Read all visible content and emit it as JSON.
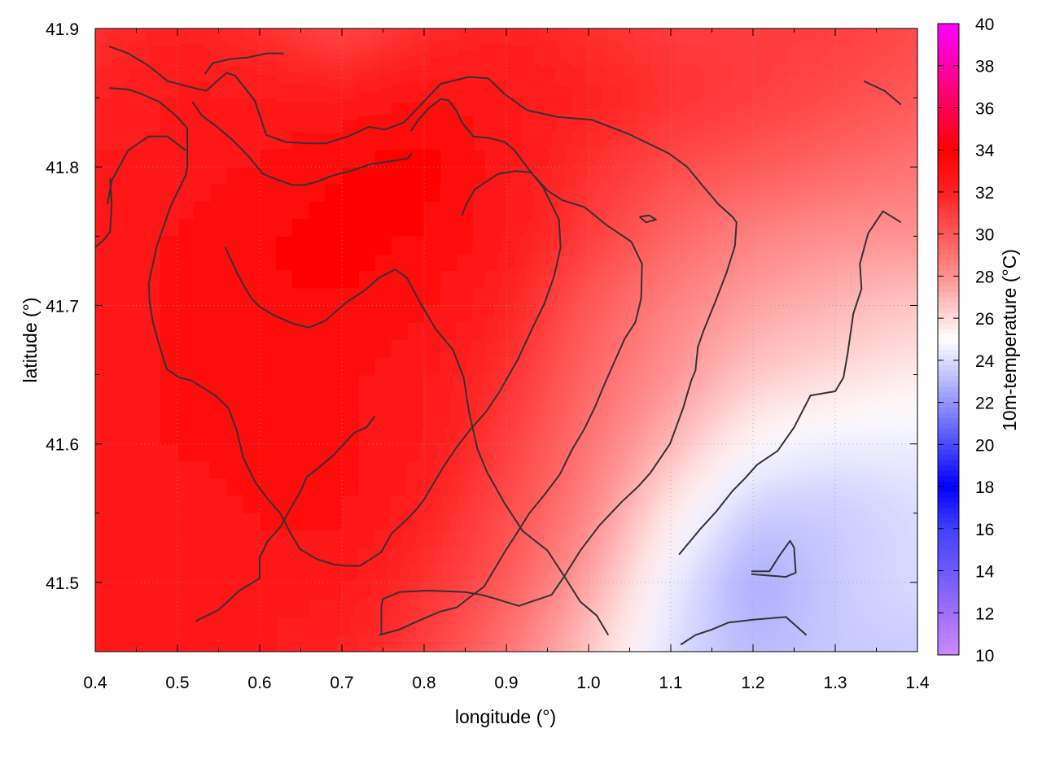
{
  "chart_data": {
    "type": "heatmap",
    "title": "",
    "xlabel": "longitude (°)",
    "ylabel": "latitude (°)",
    "colorbar_label": "10m-temperature (°C)",
    "xlim": [
      0.4,
      1.4
    ],
    "ylim": [
      41.45,
      41.9
    ],
    "x_ticks": [
      0.4,
      0.5,
      0.6,
      0.7,
      0.8,
      0.9,
      1.0,
      1.1,
      1.2,
      1.3,
      1.4
    ],
    "x_tick_labels": [
      "0.4",
      "0.5",
      "0.6",
      "0.7",
      "0.8",
      "0.9",
      "1.0",
      "1.1",
      "1.2",
      "1.3",
      "1.4"
    ],
    "y_ticks": [
      41.5,
      41.6,
      41.7,
      41.8,
      41.9
    ],
    "y_tick_labels": [
      "41.5",
      "41.6",
      "41.7",
      "41.8",
      "41.9"
    ],
    "colorbar_range": [
      10,
      40
    ],
    "colorbar_ticks": [
      10,
      12,
      14,
      16,
      18,
      20,
      22,
      24,
      26,
      28,
      30,
      32,
      34,
      36,
      38,
      40
    ],
    "colorbar_tick_labels": [
      "10",
      "12",
      "14",
      "16",
      "18",
      "20",
      "22",
      "24",
      "26",
      "28",
      "30",
      "32",
      "34",
      "36",
      "38",
      "40"
    ],
    "colormap": [
      {
        "value": 10,
        "color": "#cc88ff"
      },
      {
        "value": 16,
        "color": "#4040ff"
      },
      {
        "value": 18,
        "color": "#0000ff"
      },
      {
        "value": 21,
        "color": "#7070ff"
      },
      {
        "value": 25,
        "color": "#ffffff"
      },
      {
        "value": 28,
        "color": "#ff9090"
      },
      {
        "value": 32,
        "color": "#ff2020"
      },
      {
        "value": 34,
        "color": "#ff0000"
      },
      {
        "value": 37,
        "color": "#ff0080"
      },
      {
        "value": 40,
        "color": "#ff00ff"
      }
    ],
    "temperature_field": {
      "x": [
        0.4,
        0.5,
        0.6,
        0.7,
        0.8,
        0.9,
        1.0,
        1.1,
        1.2,
        1.3,
        1.4
      ],
      "y": [
        41.45,
        41.5,
        41.55,
        41.6,
        41.65,
        41.7,
        41.75,
        41.8,
        41.85,
        41.9
      ],
      "z": [
        [
          32.5,
          32.5,
          32.5,
          32.0,
          31.0,
          29.0,
          26.5,
          24.0,
          23.0,
          23.5,
          23.5
        ],
        [
          32.5,
          32.5,
          32.5,
          32.5,
          31.5,
          30.0,
          27.5,
          24.5,
          22.5,
          23.5,
          24.0
        ],
        [
          32.5,
          32.5,
          33.0,
          33.0,
          32.0,
          30.5,
          28.5,
          25.5,
          23.5,
          23.5,
          24.0
        ],
        [
          32.5,
          33.0,
          33.0,
          33.0,
          32.5,
          31.0,
          29.0,
          27.0,
          25.0,
          24.5,
          24.5
        ],
        [
          32.5,
          33.0,
          33.0,
          33.0,
          32.5,
          31.5,
          29.5,
          28.0,
          26.5,
          26.0,
          25.5
        ],
        [
          32.5,
          33.0,
          33.5,
          33.5,
          33.0,
          32.0,
          30.0,
          28.5,
          27.5,
          27.0,
          26.5
        ],
        [
          32.5,
          33.0,
          33.5,
          34.0,
          33.5,
          32.5,
          31.0,
          29.5,
          28.5,
          28.0,
          28.0
        ],
        [
          32.5,
          32.5,
          33.0,
          33.5,
          34.0,
          32.5,
          31.5,
          30.5,
          30.0,
          29.5,
          29.0
        ],
        [
          32.0,
          32.5,
          32.5,
          32.5,
          33.0,
          32.5,
          32.0,
          31.5,
          31.0,
          30.5,
          30.0
        ],
        [
          31.5,
          32.0,
          31.5,
          30.5,
          31.5,
          32.0,
          31.5,
          31.0,
          31.0,
          31.0,
          30.5
        ]
      ]
    },
    "contour_lines": [
      [
        [
          0.417,
          41.887
        ],
        [
          0.44,
          41.882
        ],
        [
          0.465,
          41.873
        ],
        [
          0.488,
          41.862
        ],
        [
          0.52,
          41.857
        ],
        [
          0.535,
          41.855
        ],
        [
          0.55,
          41.863
        ],
        [
          0.56,
          41.868
        ],
        [
          0.57,
          41.866
        ],
        [
          0.594,
          41.848
        ],
        [
          0.608,
          41.823
        ],
        [
          0.632,
          41.818
        ],
        [
          0.66,
          41.817
        ],
        [
          0.68,
          41.817
        ],
        [
          0.707,
          41.822
        ],
        [
          0.733,
          41.829
        ],
        [
          0.752,
          41.827
        ],
        [
          0.775,
          41.832
        ],
        [
          0.785,
          41.838
        ],
        [
          0.82,
          41.86
        ],
        [
          0.854,
          41.865
        ],
        [
          0.878,
          41.864
        ],
        [
          0.897,
          41.853
        ],
        [
          0.925,
          41.841
        ],
        [
          0.963,
          41.836
        ],
        [
          1.004,
          41.834
        ],
        [
          1.048,
          41.824
        ],
        [
          1.097,
          41.81
        ],
        [
          1.12,
          41.8
        ],
        [
          1.138,
          41.787
        ],
        [
          1.158,
          41.773
        ],
        [
          1.175,
          41.764
        ],
        [
          1.18,
          41.76
        ],
        [
          1.178,
          41.743
        ],
        [
          1.168,
          41.724
        ],
        [
          1.155,
          41.704
        ],
        [
          1.14,
          41.682
        ],
        [
          1.133,
          41.67
        ],
        [
          1.13,
          41.653
        ],
        [
          1.125,
          41.646
        ],
        [
          1.115,
          41.626
        ],
        [
          1.099,
          41.6
        ],
        [
          1.075,
          41.579
        ],
        [
          1.06,
          41.569
        ],
        [
          1.04,
          41.558
        ],
        [
          1.013,
          41.541
        ],
        [
          0.99,
          41.523
        ],
        [
          0.97,
          41.504
        ],
        [
          0.955,
          41.491
        ],
        [
          0.93,
          41.486
        ],
        [
          0.915,
          41.483
        ],
        [
          0.888,
          41.488
        ],
        [
          0.87,
          41.491
        ],
        [
          0.85,
          41.493
        ],
        [
          0.81,
          41.494
        ],
        [
          0.8,
          41.494
        ],
        [
          0.77,
          41.493
        ],
        [
          0.75,
          41.488
        ],
        [
          0.748,
          41.483
        ],
        [
          0.748,
          41.477
        ],
        [
          0.748,
          41.47
        ],
        [
          0.748,
          41.462
        ]
      ],
      [
        [
          0.417,
          41.857
        ],
        [
          0.44,
          41.856
        ],
        [
          0.455,
          41.853
        ],
        [
          0.478,
          41.847
        ],
        [
          0.498,
          41.837
        ],
        [
          0.512,
          41.828
        ],
        [
          0.512,
          41.8
        ],
        [
          0.51,
          41.794
        ],
        [
          0.492,
          41.772
        ],
        [
          0.475,
          41.743
        ],
        [
          0.465,
          41.716
        ],
        [
          0.466,
          41.703
        ],
        [
          0.47,
          41.688
        ],
        [
          0.478,
          41.671
        ],
        [
          0.487,
          41.654
        ],
        [
          0.502,
          41.648
        ],
        [
          0.516,
          41.646
        ],
        [
          0.546,
          41.635
        ],
        [
          0.562,
          41.626
        ],
        [
          0.572,
          41.61
        ],
        [
          0.58,
          41.59
        ],
        [
          0.595,
          41.572
        ],
        [
          0.61,
          41.56
        ],
        [
          0.625,
          41.55
        ],
        [
          0.637,
          41.536
        ],
        [
          0.649,
          41.524
        ],
        [
          0.669,
          41.517
        ],
        [
          0.69,
          41.513
        ],
        [
          0.705,
          41.512
        ],
        [
          0.722,
          41.512
        ],
        [
          0.738,
          41.518
        ],
        [
          0.748,
          41.522
        ],
        [
          0.76,
          41.535
        ],
        [
          0.78,
          41.546
        ],
        [
          0.791,
          41.553
        ],
        [
          0.8,
          41.56
        ],
        [
          0.81,
          41.57
        ],
        [
          0.823,
          41.583
        ],
        [
          0.84,
          41.598
        ],
        [
          0.857,
          41.611
        ],
        [
          0.875,
          41.623
        ],
        [
          0.892,
          41.638
        ],
        [
          0.914,
          41.661
        ],
        [
          0.932,
          41.684
        ],
        [
          0.946,
          41.701
        ],
        [
          0.958,
          41.721
        ],
        [
          0.966,
          41.742
        ],
        [
          0.964,
          41.762
        ],
        [
          0.945,
          41.785
        ],
        [
          0.925,
          41.8
        ],
        [
          0.91,
          41.812
        ],
        [
          0.898,
          41.818
        ],
        [
          0.878,
          41.821
        ],
        [
          0.86,
          41.822
        ],
        [
          0.846,
          41.832
        ],
        [
          0.84,
          41.84
        ],
        [
          0.83,
          41.848
        ],
        [
          0.82,
          41.849
        ],
        [
          0.805,
          41.842
        ],
        [
          0.793,
          41.834
        ],
        [
          0.784,
          41.826
        ]
      ],
      [
        [
          0.4,
          41.742
        ],
        [
          0.41,
          41.747
        ],
        [
          0.418,
          41.753
        ],
        [
          0.42,
          41.773
        ],
        [
          0.418,
          41.792
        ]
      ],
      [
        [
          0.415,
          41.773
        ],
        [
          0.42,
          41.79
        ],
        [
          0.44,
          41.812
        ],
        [
          0.465,
          41.822
        ],
        [
          0.488,
          41.822
        ],
        [
          0.51,
          41.812
        ]
      ],
      [
        [
          0.533,
          41.867
        ],
        [
          0.543,
          41.875
        ],
        [
          0.565,
          41.878
        ],
        [
          0.585,
          41.879
        ],
        [
          0.609,
          41.882
        ],
        [
          0.629,
          41.882
        ]
      ],
      [
        [
          0.518,
          41.847
        ],
        [
          0.53,
          41.837
        ],
        [
          0.548,
          41.829
        ],
        [
          0.566,
          41.82
        ],
        [
          0.586,
          41.808
        ],
        [
          0.604,
          41.795
        ],
        [
          0.62,
          41.791
        ],
        [
          0.64,
          41.787
        ],
        [
          0.655,
          41.787
        ],
        [
          0.668,
          41.789
        ],
        [
          0.69,
          41.794
        ],
        [
          0.71,
          41.797
        ],
        [
          0.735,
          41.802
        ],
        [
          0.758,
          41.804
        ],
        [
          0.78,
          41.806
        ],
        [
          0.785,
          41.81
        ]
      ],
      [
        [
          0.558,
          41.742
        ],
        [
          0.572,
          41.724
        ],
        [
          0.58,
          41.715
        ],
        [
          0.59,
          41.705
        ],
        [
          0.6,
          41.699
        ],
        [
          0.617,
          41.693
        ],
        [
          0.64,
          41.687
        ],
        [
          0.66,
          41.684
        ],
        [
          0.68,
          41.689
        ],
        [
          0.705,
          41.702
        ],
        [
          0.728,
          41.711
        ],
        [
          0.745,
          41.72
        ],
        [
          0.765,
          41.726
        ],
        [
          0.779,
          41.72
        ],
        [
          0.795,
          41.702
        ],
        [
          0.814,
          41.683
        ],
        [
          0.835,
          41.668
        ],
        [
          0.848,
          41.648
        ],
        [
          0.855,
          41.622
        ],
        [
          0.865,
          41.596
        ],
        [
          0.877,
          41.579
        ],
        [
          0.898,
          41.557
        ],
        [
          0.92,
          41.537
        ],
        [
          0.95,
          41.523
        ],
        [
          0.972,
          41.503
        ],
        [
          0.99,
          41.486
        ],
        [
          1.01,
          41.476
        ],
        [
          1.024,
          41.462
        ]
      ],
      [
        [
          0.522,
          41.472
        ],
        [
          0.55,
          41.48
        ],
        [
          0.575,
          41.494
        ],
        [
          0.6,
          41.503
        ],
        [
          0.6,
          41.518
        ],
        [
          0.61,
          41.53
        ],
        [
          0.625,
          41.54
        ],
        [
          0.637,
          41.553
        ],
        [
          0.65,
          41.566
        ],
        [
          0.657,
          41.576
        ],
        [
          0.67,
          41.582
        ],
        [
          0.69,
          41.592
        ],
        [
          0.715,
          41.608
        ],
        [
          0.73,
          41.612
        ],
        [
          0.74,
          41.62
        ]
      ],
      [
        [
          0.745,
          41.462
        ],
        [
          0.77,
          41.466
        ],
        [
          0.792,
          41.472
        ],
        [
          0.82,
          41.479
        ],
        [
          0.84,
          41.482
        ],
        [
          0.855,
          41.489
        ],
        [
          0.873,
          41.497
        ],
        [
          0.886,
          41.51
        ],
        [
          0.898,
          41.522
        ],
        [
          0.91,
          41.533
        ],
        [
          0.928,
          41.55
        ],
        [
          0.946,
          41.563
        ],
        [
          0.965,
          41.578
        ],
        [
          0.98,
          41.596
        ],
        [
          0.995,
          41.611
        ],
        [
          1.008,
          41.627
        ],
        [
          1.02,
          41.644
        ],
        [
          1.032,
          41.66
        ],
        [
          1.044,
          41.676
        ],
        [
          1.057,
          41.688
        ],
        [
          1.064,
          41.705
        ],
        [
          1.065,
          41.73
        ],
        [
          1.052,
          41.746
        ],
        [
          1.022,
          41.758
        ],
        [
          0.995,
          41.771
        ],
        [
          0.968,
          41.776
        ],
        [
          0.95,
          41.783
        ],
        [
          0.93,
          41.796
        ],
        [
          0.912,
          41.797
        ],
        [
          0.89,
          41.795
        ],
        [
          0.862,
          41.784
        ],
        [
          0.852,
          41.774
        ],
        [
          0.846,
          41.765
        ]
      ],
      [
        [
          1.062,
          41.764
        ],
        [
          1.07,
          41.76
        ],
        [
          1.082,
          41.762
        ],
        [
          1.074,
          41.765
        ],
        [
          1.062,
          41.764
        ]
      ],
      [
        [
          1.112,
          41.455
        ],
        [
          1.13,
          41.462
        ],
        [
          1.15,
          41.466
        ],
        [
          1.17,
          41.471
        ],
        [
          1.2,
          41.473
        ],
        [
          1.24,
          41.475
        ],
        [
          1.265,
          41.462
        ]
      ],
      [
        [
          1.198,
          41.508
        ],
        [
          1.22,
          41.508
        ],
        [
          1.233,
          41.52
        ],
        [
          1.245,
          41.53
        ],
        [
          1.25,
          41.525
        ],
        [
          1.252,
          41.507
        ],
        [
          1.24,
          41.504
        ],
        [
          1.198,
          41.506
        ]
      ],
      [
        [
          1.11,
          41.52
        ],
        [
          1.135,
          41.538
        ],
        [
          1.155,
          41.551
        ],
        [
          1.175,
          41.566
        ],
        [
          1.19,
          41.575
        ],
        [
          1.205,
          41.585
        ],
        [
          1.23,
          41.595
        ],
        [
          1.25,
          41.612
        ],
        [
          1.27,
          41.635
        ],
        [
          1.3,
          41.638
        ],
        [
          1.31,
          41.648
        ],
        [
          1.315,
          41.665
        ],
        [
          1.322,
          41.694
        ],
        [
          1.332,
          41.712
        ],
        [
          1.33,
          41.73
        ],
        [
          1.34,
          41.752
        ],
        [
          1.358,
          41.768
        ],
        [
          1.38,
          41.76
        ]
      ],
      [
        [
          1.335,
          41.862
        ],
        [
          1.36,
          41.855
        ],
        [
          1.38,
          41.845
        ]
      ]
    ]
  }
}
